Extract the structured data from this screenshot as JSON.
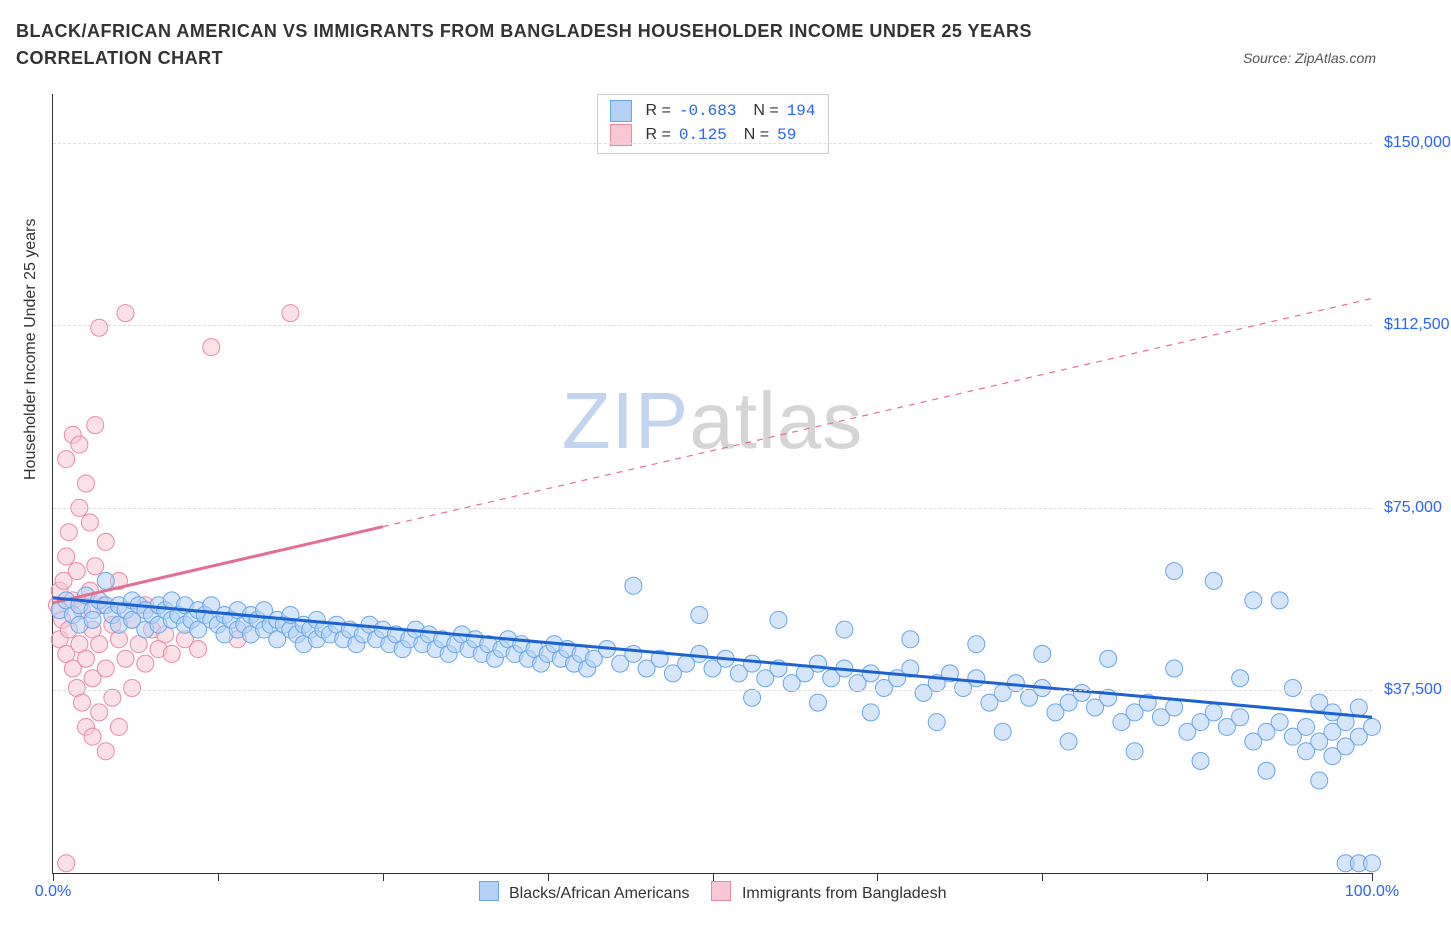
{
  "title": "BLACK/AFRICAN AMERICAN VS IMMIGRANTS FROM BANGLADESH HOUSEHOLDER INCOME UNDER 25 YEARS CORRELATION CHART",
  "source": "Source: ZipAtlas.com",
  "y_axis_title": "Householder Income Under 25 years",
  "watermark_a": "ZIP",
  "watermark_b": "atlas",
  "colors": {
    "blue_fill": "#b3d1f5",
    "blue_stroke": "#6aa6e6",
    "blue_line": "#1d62d1",
    "pink_fill": "#f8c7d4",
    "pink_stroke": "#e98aa5",
    "pink_line": "#e46f92",
    "axis_text": "#2962ff",
    "grid": "#dddddd",
    "fg": "#333333"
  },
  "chart": {
    "type": "scatter",
    "xlim": [
      0,
      100
    ],
    "ylim": [
      0,
      160000
    ],
    "y_ticks": [
      {
        "v": 37500,
        "label": "$37,500"
      },
      {
        "v": 75000,
        "label": "$75,000"
      },
      {
        "v": 112500,
        "label": "$112,500"
      },
      {
        "v": 150000,
        "label": "$150,000"
      }
    ],
    "x_ticks": [
      0,
      12.5,
      25,
      37.5,
      50,
      62.5,
      75,
      87.5,
      100
    ],
    "x_labels": [
      {
        "v": 0,
        "label": "0.0%"
      },
      {
        "v": 100,
        "label": "100.0%"
      }
    ],
    "marker_radius": 8.5,
    "marker_opacity": 0.55,
    "line_width_solid": 3,
    "line_width_dash": 1.2
  },
  "stats": [
    {
      "series": "blue",
      "R": "-0.683",
      "N": "194"
    },
    {
      "series": "pink",
      "R": " 0.125",
      "N": " 59"
    }
  ],
  "bottom_legend": [
    {
      "series": "blue",
      "label": "Blacks/African Americans"
    },
    {
      "series": "pink",
      "label": "Immigrants from Bangladesh"
    }
  ],
  "trend_lines": {
    "blue": {
      "x1": 0,
      "y1": 56500,
      "x2": 100,
      "y2": 32000,
      "solid_until_x": 100
    },
    "pink": {
      "x1": 0,
      "y1": 55500,
      "x2": 100,
      "y2": 118000,
      "solid_until_x": 25
    }
  },
  "series": {
    "blue": [
      [
        0.5,
        54000
      ],
      [
        1,
        56000
      ],
      [
        1.5,
        53000
      ],
      [
        2,
        55000
      ],
      [
        2,
        51000
      ],
      [
        2.5,
        57000
      ],
      [
        3,
        54000
      ],
      [
        3,
        52000
      ],
      [
        3.5,
        56000
      ],
      [
        4,
        55000
      ],
      [
        4,
        60000
      ],
      [
        4.5,
        53000
      ],
      [
        5,
        55000
      ],
      [
        5,
        51000
      ],
      [
        5.5,
        54000
      ],
      [
        6,
        56000
      ],
      [
        6,
        52000
      ],
      [
        6.5,
        55000
      ],
      [
        7,
        54000
      ],
      [
        7,
        50000
      ],
      [
        7.5,
        53000
      ],
      [
        8,
        55000
      ],
      [
        8,
        51000
      ],
      [
        8.5,
        54000
      ],
      [
        9,
        52000
      ],
      [
        9,
        56000
      ],
      [
        9.5,
        53000
      ],
      [
        10,
        55000
      ],
      [
        10,
        51000
      ],
      [
        10.5,
        52000
      ],
      [
        11,
        54000
      ],
      [
        11,
        50000
      ],
      [
        11.5,
        53000
      ],
      [
        12,
        52000
      ],
      [
        12,
        55000
      ],
      [
        12.5,
        51000
      ],
      [
        13,
        53000
      ],
      [
        13,
        49000
      ],
      [
        13.5,
        52000
      ],
      [
        14,
        54000
      ],
      [
        14,
        50000
      ],
      [
        14.5,
        51000
      ],
      [
        15,
        53000
      ],
      [
        15,
        49000
      ],
      [
        15.5,
        52000
      ],
      [
        16,
        50000
      ],
      [
        16,
        54000
      ],
      [
        16.5,
        51000
      ],
      [
        17,
        52000
      ],
      [
        17,
        48000
      ],
      [
        17.5,
        51000
      ],
      [
        18,
        50000
      ],
      [
        18,
        53000
      ],
      [
        18.5,
        49000
      ],
      [
        19,
        51000
      ],
      [
        19,
        47000
      ],
      [
        19.5,
        50000
      ],
      [
        20,
        52000
      ],
      [
        20,
        48000
      ],
      [
        20.5,
        50000
      ],
      [
        21,
        49000
      ],
      [
        21.5,
        51000
      ],
      [
        22,
        48000
      ],
      [
        22.5,
        50000
      ],
      [
        23,
        47000
      ],
      [
        23.5,
        49000
      ],
      [
        24,
        51000
      ],
      [
        24.5,
        48000
      ],
      [
        25,
        50000
      ],
      [
        25.5,
        47000
      ],
      [
        26,
        49000
      ],
      [
        26.5,
        46000
      ],
      [
        27,
        48000
      ],
      [
        27.5,
        50000
      ],
      [
        28,
        47000
      ],
      [
        28.5,
        49000
      ],
      [
        29,
        46000
      ],
      [
        29.5,
        48000
      ],
      [
        30,
        45000
      ],
      [
        30.5,
        47000
      ],
      [
        31,
        49000
      ],
      [
        31.5,
        46000
      ],
      [
        32,
        48000
      ],
      [
        32.5,
        45000
      ],
      [
        33,
        47000
      ],
      [
        33.5,
        44000
      ],
      [
        34,
        46000
      ],
      [
        34.5,
        48000
      ],
      [
        35,
        45000
      ],
      [
        35.5,
        47000
      ],
      [
        36,
        44000
      ],
      [
        36.5,
        46000
      ],
      [
        37,
        43000
      ],
      [
        37.5,
        45000
      ],
      [
        38,
        47000
      ],
      [
        38.5,
        44000
      ],
      [
        39,
        46000
      ],
      [
        39.5,
        43000
      ],
      [
        40,
        45000
      ],
      [
        40.5,
        42000
      ],
      [
        41,
        44000
      ],
      [
        42,
        46000
      ],
      [
        43,
        43000
      ],
      [
        44,
        45000
      ],
      [
        44,
        59000
      ],
      [
        45,
        42000
      ],
      [
        46,
        44000
      ],
      [
        47,
        41000
      ],
      [
        48,
        43000
      ],
      [
        49,
        45000
      ],
      [
        49,
        53000
      ],
      [
        50,
        42000
      ],
      [
        51,
        44000
      ],
      [
        52,
        41000
      ],
      [
        53,
        43000
      ],
      [
        53,
        36000
      ],
      [
        54,
        40000
      ],
      [
        55,
        42000
      ],
      [
        55,
        52000
      ],
      [
        56,
        39000
      ],
      [
        57,
        41000
      ],
      [
        58,
        43000
      ],
      [
        58,
        35000
      ],
      [
        59,
        40000
      ],
      [
        60,
        42000
      ],
      [
        60,
        50000
      ],
      [
        61,
        39000
      ],
      [
        62,
        41000
      ],
      [
        62,
        33000
      ],
      [
        63,
        38000
      ],
      [
        64,
        40000
      ],
      [
        65,
        42000
      ],
      [
        65,
        48000
      ],
      [
        66,
        37000
      ],
      [
        67,
        39000
      ],
      [
        67,
        31000
      ],
      [
        68,
        41000
      ],
      [
        69,
        38000
      ],
      [
        70,
        40000
      ],
      [
        70,
        47000
      ],
      [
        71,
        35000
      ],
      [
        72,
        37000
      ],
      [
        72,
        29000
      ],
      [
        73,
        39000
      ],
      [
        74,
        36000
      ],
      [
        75,
        38000
      ],
      [
        75,
        45000
      ],
      [
        76,
        33000
      ],
      [
        77,
        35000
      ],
      [
        77,
        27000
      ],
      [
        78,
        37000
      ],
      [
        79,
        34000
      ],
      [
        80,
        36000
      ],
      [
        80,
        44000
      ],
      [
        81,
        31000
      ],
      [
        82,
        33000
      ],
      [
        82,
        25000
      ],
      [
        83,
        35000
      ],
      [
        84,
        32000
      ],
      [
        85,
        34000
      ],
      [
        85,
        42000
      ],
      [
        85,
        62000
      ],
      [
        86,
        29000
      ],
      [
        87,
        31000
      ],
      [
        87,
        23000
      ],
      [
        88,
        33000
      ],
      [
        88,
        60000
      ],
      [
        89,
        30000
      ],
      [
        90,
        32000
      ],
      [
        90,
        40000
      ],
      [
        91,
        27000
      ],
      [
        91,
        56000
      ],
      [
        92,
        29000
      ],
      [
        92,
        21000
      ],
      [
        93,
        31000
      ],
      [
        93,
        56000
      ],
      [
        94,
        28000
      ],
      [
        94,
        38000
      ],
      [
        95,
        30000
      ],
      [
        95,
        25000
      ],
      [
        96,
        27000
      ],
      [
        96,
        35000
      ],
      [
        96,
        19000
      ],
      [
        97,
        29000
      ],
      [
        97,
        33000
      ],
      [
        97,
        24000
      ],
      [
        98,
        26000
      ],
      [
        98,
        31000
      ],
      [
        98,
        2000
      ],
      [
        99,
        28000
      ],
      [
        99,
        2000
      ],
      [
        99,
        34000
      ],
      [
        100,
        2000
      ],
      [
        100,
        30000
      ]
    ],
    "pink": [
      [
        0.3,
        55000
      ],
      [
        0.5,
        58000
      ],
      [
        0.5,
        48000
      ],
      [
        0.7,
        52000
      ],
      [
        0.8,
        60000
      ],
      [
        1,
        45000
      ],
      [
        1,
        65000
      ],
      [
        1,
        85000
      ],
      [
        1.2,
        50000
      ],
      [
        1.2,
        70000
      ],
      [
        1.5,
        42000
      ],
      [
        1.5,
        56000
      ],
      [
        1.5,
        90000
      ],
      [
        1.8,
        38000
      ],
      [
        1.8,
        62000
      ],
      [
        2,
        47000
      ],
      [
        2,
        75000
      ],
      [
        2,
        88000
      ],
      [
        2.2,
        35000
      ],
      [
        2.2,
        54000
      ],
      [
        2.5,
        80000
      ],
      [
        2.5,
        44000
      ],
      [
        2.5,
        30000
      ],
      [
        2.8,
        58000
      ],
      [
        2.8,
        72000
      ],
      [
        3,
        50000
      ],
      [
        3,
        40000
      ],
      [
        3,
        28000
      ],
      [
        3.2,
        63000
      ],
      [
        3.2,
        92000
      ],
      [
        3.5,
        47000
      ],
      [
        3.5,
        33000
      ],
      [
        3.5,
        112000
      ],
      [
        3.8,
        55000
      ],
      [
        4,
        42000
      ],
      [
        4,
        68000
      ],
      [
        4,
        25000
      ],
      [
        4.5,
        51000
      ],
      [
        4.5,
        36000
      ],
      [
        5,
        48000
      ],
      [
        5,
        60000
      ],
      [
        5,
        30000
      ],
      [
        5.5,
        44000
      ],
      [
        5.5,
        115000
      ],
      [
        6,
        52000
      ],
      [
        6,
        38000
      ],
      [
        6.5,
        47000
      ],
      [
        7,
        43000
      ],
      [
        7,
        55000
      ],
      [
        7.5,
        50000
      ],
      [
        8,
        46000
      ],
      [
        8.5,
        49000
      ],
      [
        9,
        45000
      ],
      [
        10,
        48000
      ],
      [
        11,
        46000
      ],
      [
        12,
        108000
      ],
      [
        14,
        48000
      ],
      [
        18,
        115000
      ],
      [
        1,
        2000
      ]
    ]
  }
}
